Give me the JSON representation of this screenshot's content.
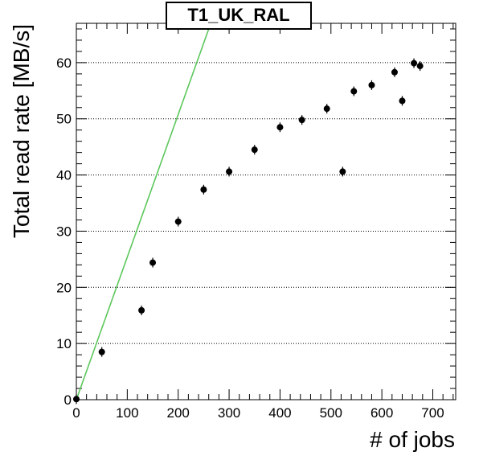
{
  "chart_data": {
    "type": "scatter",
    "title": "T1_UK_RAL",
    "xlabel": "# of jobs",
    "ylabel": "Total read rate [MB/s]",
    "xlim": [
      0,
      745
    ],
    "ylim": [
      0,
      67
    ],
    "xticks": [
      0,
      100,
      200,
      300,
      400,
      500,
      600,
      700
    ],
    "yticks": [
      0,
      10,
      20,
      30,
      40,
      50,
      60
    ],
    "grid": "horizontal-dotted",
    "colors": {
      "points": "#000000",
      "reference_line": "#5dc75d",
      "grid": "#000000"
    },
    "series": [
      {
        "values": [
          {
            "x": 0,
            "y": 0.1
          },
          {
            "x": 50,
            "y": 8.5
          },
          {
            "x": 128,
            "y": 15.9
          },
          {
            "x": 150,
            "y": 24.4
          },
          {
            "x": 200,
            "y": 31.7
          },
          {
            "x": 250,
            "y": 37.4
          },
          {
            "x": 300,
            "y": 40.6
          },
          {
            "x": 350,
            "y": 44.5
          },
          {
            "x": 400,
            "y": 48.5
          },
          {
            "x": 443,
            "y": 49.8
          },
          {
            "x": 492,
            "y": 51.8
          },
          {
            "x": 523,
            "y": 40.6
          },
          {
            "x": 545,
            "y": 54.9
          },
          {
            "x": 580,
            "y": 56.0
          },
          {
            "x": 625,
            "y": 58.3
          },
          {
            "x": 640,
            "y": 53.2
          },
          {
            "x": 663,
            "y": 59.9
          },
          {
            "x": 675,
            "y": 59.4
          }
        ]
      }
    ],
    "reference_line": {
      "x": [
        0,
        262
      ],
      "y": [
        0,
        66.5
      ]
    }
  }
}
